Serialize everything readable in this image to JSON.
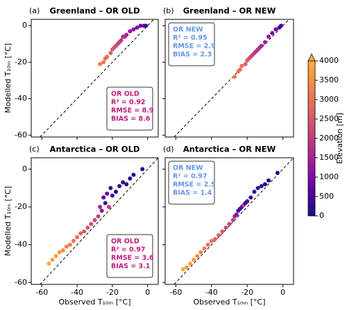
{
  "chart_data": [
    {
      "type": "scatter",
      "panel_label": "(a)",
      "title": "Greenland – OR OLD",
      "ylabel": "Modelled T₁₀ₘ [°C]",
      "show_xtick_labels": false,
      "show_ytick_labels": true,
      "xlim": [
        -66,
        6
      ],
      "ylim": [
        -61,
        3.5
      ],
      "xticks": [
        -60,
        -40,
        -20,
        0
      ],
      "yticks": [
        -60,
        -40,
        -20,
        0
      ],
      "x": [
        -27,
        -25,
        -24,
        -23,
        -21,
        -20,
        -19,
        -18,
        -17,
        -16,
        -15,
        -14,
        -13,
        -12,
        -10,
        -8,
        -6,
        -4,
        -2,
        -1
      ],
      "y": [
        -21,
        -20,
        -18,
        -17,
        -15,
        -13,
        -12,
        -11,
        -10,
        -9,
        -8,
        -6,
        -6,
        -5,
        -3,
        -2,
        -1,
        0,
        0,
        0
      ],
      "c": [
        3200,
        3100,
        3000,
        2900,
        2700,
        2600,
        2500,
        2300,
        2200,
        2000,
        1900,
        1800,
        1700,
        1500,
        1300,
        1200,
        1000,
        800,
        600,
        400
      ],
      "annotation": {
        "lines": [
          "OR OLD",
          "R² = 0.92",
          "RMSE = 8.9",
          "BIAS = 8.6"
        ],
        "color": "#c2187e",
        "corner": "lower-right"
      }
    },
    {
      "type": "scatter",
      "panel_label": "(b)",
      "title": "Greenland – OR NEW",
      "show_xtick_labels": false,
      "show_ytick_labels": false,
      "xlim": [
        -66,
        6
      ],
      "ylim": [
        -61,
        3.5
      ],
      "xticks": [
        -60,
        -40,
        -20,
        0
      ],
      "yticks": [
        -60,
        -40,
        -20,
        0
      ],
      "x": [
        -27,
        -25,
        -24,
        -23,
        -21,
        -20,
        -19,
        -18,
        -17,
        -16,
        -15,
        -14,
        -13,
        -12,
        -10,
        -8,
        -6,
        -4,
        -2,
        -1
      ],
      "y": [
        -28,
        -25,
        -24,
        -22,
        -21,
        -19,
        -18,
        -17,
        -16,
        -15,
        -14,
        -13,
        -12,
        -11,
        -9,
        -6,
        -4,
        -2,
        -1,
        0
      ],
      "c": [
        3200,
        3100,
        3000,
        2900,
        2700,
        2600,
        2500,
        2300,
        2200,
        2000,
        1900,
        1800,
        1700,
        1500,
        1300,
        1200,
        1000,
        800,
        600,
        400
      ],
      "annotation": {
        "lines": [
          "OR NEW",
          "R² = 0.95",
          "RMSE = 2.9",
          "BIAS = 2.3"
        ],
        "color": "#6495ed",
        "corner": "upper-left"
      }
    },
    {
      "type": "scatter",
      "panel_label": "(c)",
      "title": "Antarctica – OR OLD",
      "ylabel": "Modelled T₁₀ₘ [°C]",
      "xlabel": "Observed T₁₀ₘ [°C]",
      "show_xtick_labels": true,
      "show_ytick_labels": true,
      "xlim": [
        -66,
        6
      ],
      "ylim": [
        -61,
        6
      ],
      "xticks": [
        -60,
        -40,
        -20,
        0
      ],
      "yticks": [
        -60,
        -40,
        -20,
        0
      ],
      "x": [
        -56,
        -54,
        -52,
        -50,
        -48,
        -46,
        -44,
        -42,
        -40,
        -38,
        -36,
        -34,
        -32,
        -30,
        -28,
        -27,
        -26,
        -25,
        -24,
        -23,
        -22,
        -21,
        -20,
        -18,
        -16,
        -14,
        -12,
        -10,
        -8,
        -3
      ],
      "y": [
        -50,
        -48,
        -46,
        -44,
        -43,
        -41,
        -40,
        -38,
        -36,
        -34,
        -33,
        -31,
        -29,
        -27,
        -25,
        -20,
        -22,
        -15,
        -18,
        -13,
        -20,
        -10,
        -14,
        -12,
        -9,
        -7,
        -8,
        -5,
        -3,
        0
      ],
      "c": [
        3900,
        3800,
        3700,
        3600,
        3400,
        3300,
        3200,
        3000,
        2900,
        2800,
        2600,
        2500,
        2400,
        2200,
        2000,
        1500,
        1200,
        600,
        400,
        800,
        1900,
        300,
        500,
        200,
        300,
        200,
        100,
        150,
        100,
        100
      ],
      "annotation": {
        "lines": [
          "OR OLD",
          "R² = 0.97",
          "RMSE = 3.6",
          "BIAS = 3.1"
        ],
        "color": "#c2187e",
        "corner": "lower-right"
      }
    },
    {
      "type": "scatter",
      "panel_label": "(d)",
      "title": "Antarctica – OR NEW",
      "xlabel": "Observed T₁₀ₘ [°C]",
      "show_xtick_labels": true,
      "show_ytick_labels": false,
      "xlim": [
        -66,
        6
      ],
      "ylim": [
        -61,
        6
      ],
      "xticks": [
        -60,
        -40,
        -20,
        0
      ],
      "yticks": [
        -60,
        -40,
        -20,
        0
      ],
      "x": [
        -56,
        -54,
        -52,
        -50,
        -48,
        -46,
        -44,
        -42,
        -40,
        -38,
        -36,
        -34,
        -32,
        -30,
        -28,
        -27,
        -26,
        -25,
        -24,
        -23,
        -22,
        -21,
        -20,
        -18,
        -16,
        -14,
        -12,
        -10,
        -8,
        -3
      ],
      "y": [
        -53,
        -52,
        -50,
        -48,
        -46,
        -44,
        -42,
        -40,
        -38,
        -37,
        -35,
        -33,
        -31,
        -29,
        -27,
        -25,
        -24,
        -22,
        -21,
        -20,
        -19,
        -18,
        -17,
        -15,
        -12,
        -10,
        -9,
        -8,
        -6,
        -2
      ],
      "c": [
        3900,
        3800,
        3700,
        3600,
        3400,
        3300,
        3200,
        3000,
        2900,
        2800,
        2600,
        2500,
        2400,
        2200,
        2000,
        1500,
        1200,
        600,
        400,
        800,
        1900,
        300,
        500,
        200,
        300,
        200,
        100,
        150,
        100,
        100
      ],
      "annotation": {
        "lines": [
          "OR NEW",
          "R² = 0.97",
          "RMSE = 2.5",
          "BIAS = 1.4"
        ],
        "color": "#6495ed",
        "corner": "upper-left"
      }
    }
  ],
  "colorbar": {
    "label": "Elevation [m]",
    "clim": [
      0,
      4000
    ],
    "ticks": [
      0,
      500,
      1000,
      1500,
      2000,
      2500,
      3000,
      3500,
      4000
    ],
    "colormap": [
      "#1b0c83",
      "#5c01a6",
      "#9c179e",
      "#c13d80",
      "#dc6263",
      "#f0864a",
      "#fbb03b"
    ],
    "extend": "max"
  }
}
